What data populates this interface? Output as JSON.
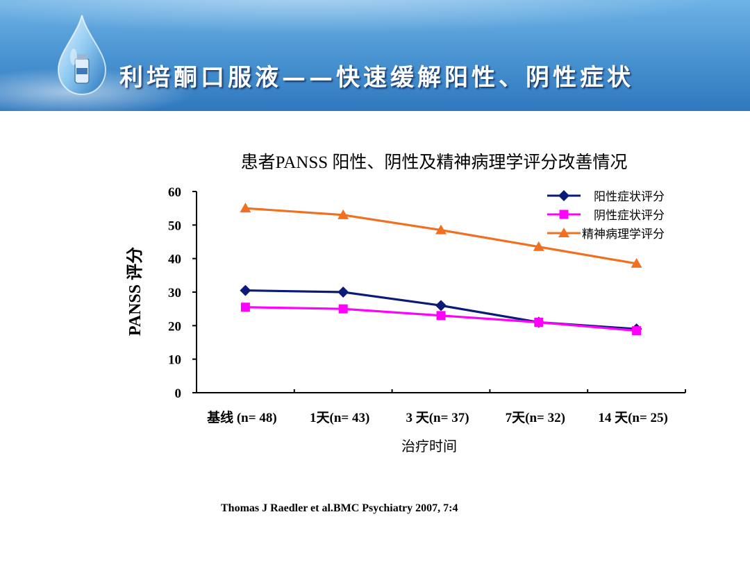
{
  "slide": {
    "title": "利培酮口服液——快速缓解阳性、阴性症状",
    "citation": "Thomas J Raedler et al.BMC Psychiatry 2007, 7:4"
  },
  "colors": {
    "banner_top": "#6fb3e6",
    "banner_bottom": "#2f78be",
    "series_positive": "#0a1a78",
    "series_negative": "#ff00ff",
    "series_psychopathology": "#f07020"
  },
  "icons": {
    "banner_graphic": "water-drop-icon"
  },
  "chart_data": {
    "type": "line",
    "title": "患者PANSS 阳性、阴性及精神病理学评分改善情况",
    "xlabel": "治疗时间",
    "ylabel": "PANSS 评分",
    "categories": [
      "基线 (n= 48)",
      "1天(n= 43)",
      "3 天(n= 37)",
      "7天(n= 32)",
      "14 天(n= 25)"
    ],
    "ylim": [
      0,
      60
    ],
    "yticks": [
      "0",
      "10",
      "20",
      "30",
      "40",
      "50",
      "60"
    ],
    "grid": false,
    "legend": "top-right",
    "series": [
      {
        "name": "阳性症状评分",
        "marker": "diamond",
        "color": "#0a1a78",
        "values": [
          30.5,
          30,
          26,
          21,
          19
        ]
      },
      {
        "name": "阴性症状评分",
        "marker": "square",
        "color": "#ff00ff",
        "values": [
          25.5,
          25,
          23,
          21,
          18.5
        ]
      },
      {
        "name": "精神病理学评分",
        "marker": "triangle",
        "color": "#f07020",
        "values": [
          55,
          53,
          48.5,
          43.5,
          38.5
        ]
      }
    ]
  }
}
